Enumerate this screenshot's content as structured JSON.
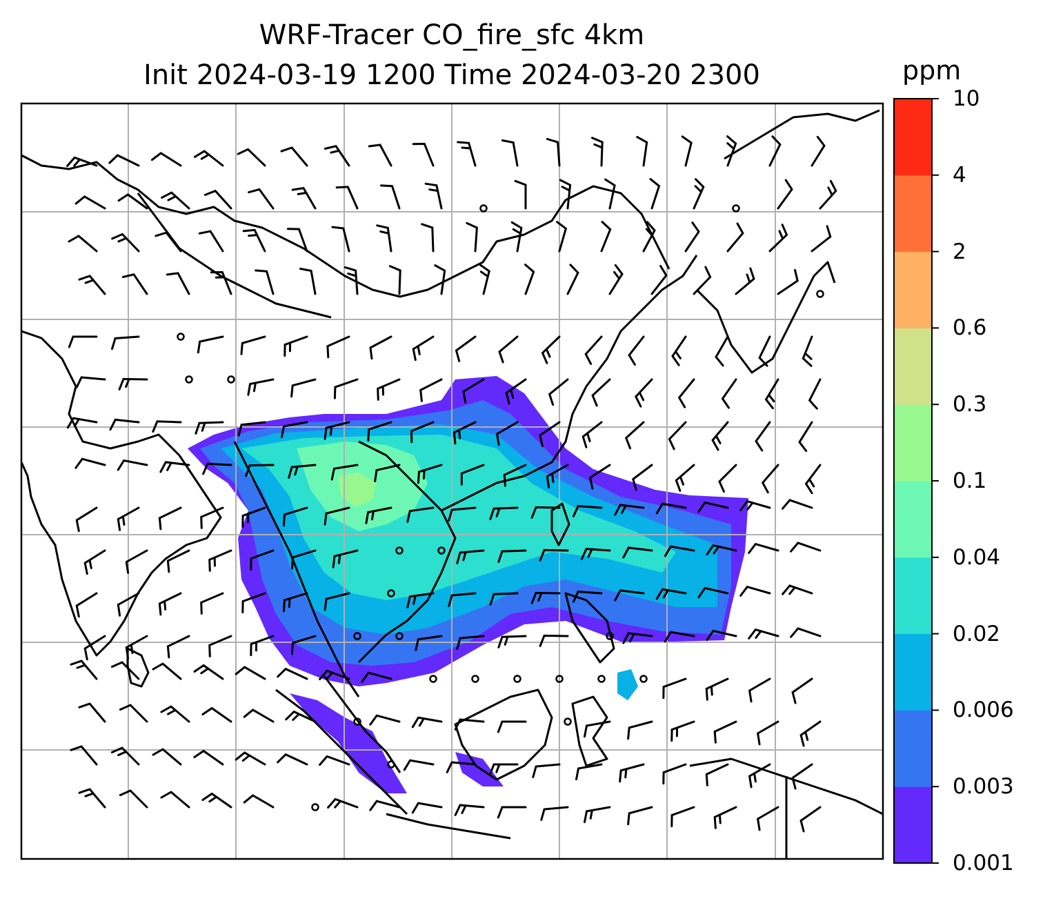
{
  "title": {
    "line1": "WRF-Tracer CO_fire_sfc 4km",
    "line2": "Init 2024-03-19 1200 Time 2024-03-20 2300"
  },
  "colorbar": {
    "unit": "ppm",
    "ticks": [
      "0.001",
      "0.003",
      "0.006",
      "0.02",
      "0.04",
      "0.1",
      "0.3",
      "0.6",
      "2",
      "4",
      "10"
    ],
    "colors": [
      "#6429fb",
      "#3575f2",
      "#08b1e6",
      "#2ddfcf",
      "#6cf8b4",
      "#98f88f",
      "#d0e18a",
      "#ffb163",
      "#ff7039",
      "#ff2a14"
    ]
  },
  "map": {
    "layer": "surface CO fire tracer concentration with wind barbs",
    "coastline_color": "#000000",
    "gridline_color": "#b0b0b0"
  }
}
